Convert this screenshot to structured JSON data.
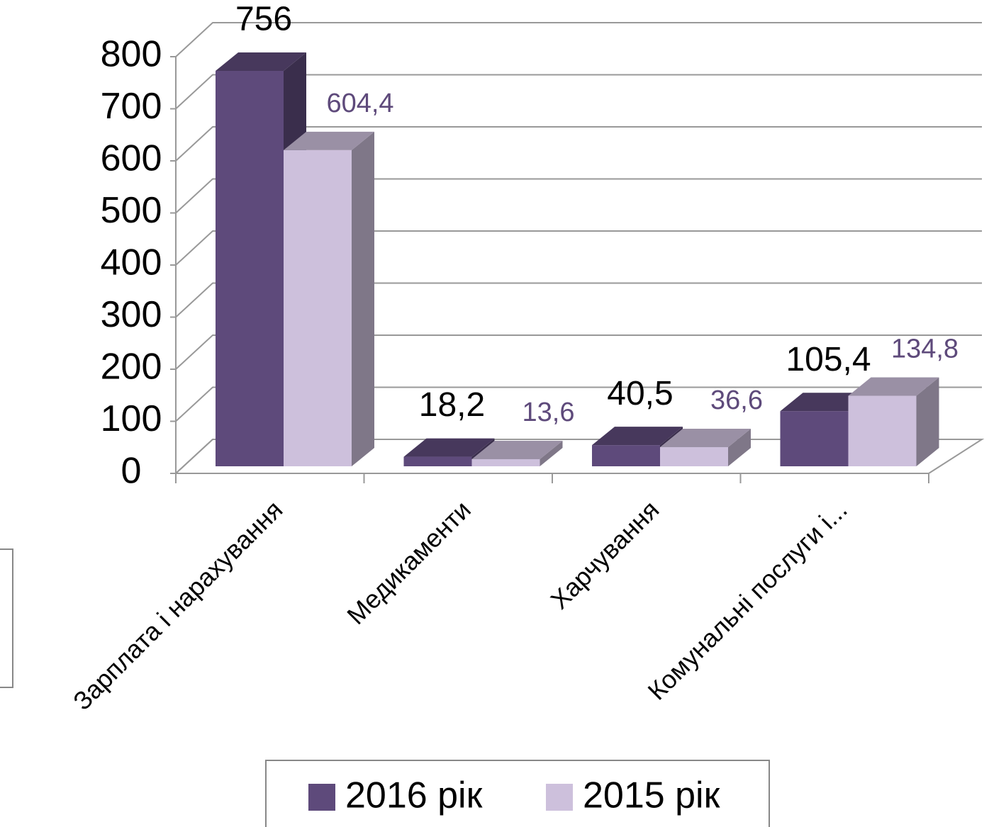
{
  "chart_data": {
    "type": "bar3d",
    "categories": [
      "Зарплата і нарахування",
      "Медикаменти",
      "Харчування",
      "Комунальні послуги і..."
    ],
    "series": [
      {
        "name": "2016 рік",
        "color": "#5e4a7b",
        "values": [
          756,
          18.2,
          40.5,
          105.4
        ],
        "value_labels": [
          "756",
          "18,2",
          "40,5",
          "105,4"
        ]
      },
      {
        "name": "2015 рік",
        "color": "#cdc0dc",
        "values": [
          604.4,
          13.6,
          36.6,
          134.8
        ],
        "value_labels": [
          "604,4",
          "13,6",
          "36,6",
          "134,8"
        ]
      }
    ],
    "ylim": [
      0,
      800
    ],
    "yticks": [
      0,
      100,
      200,
      300,
      400,
      500,
      600,
      700,
      800
    ],
    "grid": true,
    "legend": "bottom"
  }
}
